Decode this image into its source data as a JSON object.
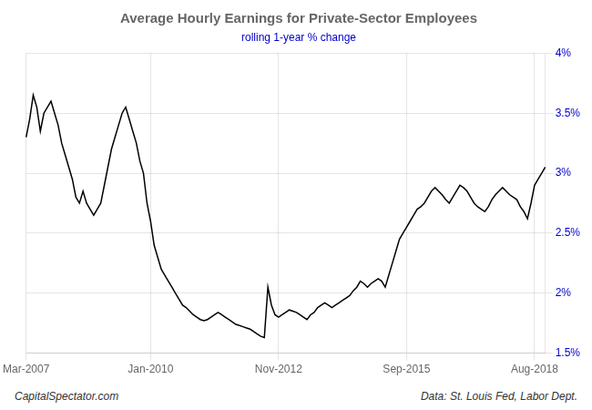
{
  "chart_data": {
    "type": "line",
    "title": "Average Hourly Earnings for Private-Sector Employees",
    "subtitle": "rolling 1-year % change",
    "annotations": [
      "CapitalSpectator.com",
      "Data: St. Louis Fed, Labor Dept."
    ],
    "categories": [
      "Mar-2007",
      null,
      null,
      null,
      null,
      null,
      null,
      null,
      null,
      null,
      null,
      null,
      null,
      null,
      null,
      null,
      null,
      null,
      null,
      null,
      null,
      null,
      null,
      null,
      null,
      null,
      null,
      null,
      null,
      null,
      null,
      null,
      null,
      null,
      null,
      "Jan-2010",
      null,
      null,
      null,
      null,
      null,
      null,
      null,
      null,
      null,
      null,
      null,
      null,
      null,
      null,
      null,
      null,
      null,
      null,
      null,
      null,
      null,
      null,
      null,
      null,
      null,
      null,
      null,
      null,
      null,
      null,
      null,
      null,
      null,
      null,
      null,
      "Nov-2012",
      null,
      null,
      null,
      null,
      null,
      null,
      null,
      null,
      null,
      null,
      null,
      null,
      null,
      null,
      null,
      null,
      null,
      null,
      null,
      null,
      null,
      null,
      null,
      null,
      null,
      null,
      null,
      null,
      null,
      null,
      null,
      null,
      null,
      null,
      null,
      "Sep-2015",
      null,
      null,
      null,
      null,
      null,
      null,
      null,
      null,
      null,
      null,
      null,
      null,
      null,
      null,
      null,
      null,
      null,
      null,
      null,
      null,
      null,
      null,
      null,
      null,
      null,
      null,
      null,
      null,
      null,
      null,
      null,
      null,
      null,
      null,
      null,
      "Aug-2018",
      null,
      null,
      null
    ],
    "series": [
      {
        "color": "#000000",
        "values": [
          3.3,
          3.45,
          3.65,
          3.55,
          3.35,
          3.5,
          3.55,
          3.6,
          3.5,
          3.4,
          3.25,
          3.15,
          3.05,
          2.95,
          2.8,
          2.75,
          2.85,
          2.75,
          2.7,
          2.65,
          2.7,
          2.75,
          2.9,
          3.05,
          3.2,
          3.3,
          3.4,
          3.5,
          3.55,
          3.45,
          3.35,
          3.25,
          3.1,
          3.0,
          2.75,
          2.6,
          2.4,
          2.3,
          2.2,
          2.15,
          2.1,
          2.05,
          2.0,
          1.95,
          1.9,
          1.88,
          1.85,
          1.82,
          1.8,
          1.78,
          1.77,
          1.78,
          1.8,
          1.82,
          1.84,
          1.82,
          1.8,
          1.78,
          1.76,
          1.74,
          1.73,
          1.72,
          1.71,
          1.7,
          1.68,
          1.66,
          1.64,
          1.63,
          2.05,
          1.9,
          1.82,
          1.8,
          1.82,
          1.84,
          1.86,
          1.85,
          1.84,
          1.82,
          1.8,
          1.78,
          1.82,
          1.84,
          1.88,
          1.9,
          1.92,
          1.9,
          1.88,
          1.9,
          1.92,
          1.94,
          1.96,
          1.98,
          2.02,
          2.05,
          2.1,
          2.08,
          2.05,
          2.08,
          2.1,
          2.12,
          2.1,
          2.05,
          2.15,
          2.25,
          2.35,
          2.45,
          2.5,
          2.55,
          2.6,
          2.65,
          2.7,
          2.72,
          2.75,
          2.8,
          2.85,
          2.88,
          2.85,
          2.82,
          2.78,
          2.75,
          2.8,
          2.85,
          2.9,
          2.88,
          2.85,
          2.8,
          2.75,
          2.72,
          2.7,
          2.68,
          2.72,
          2.78,
          2.82,
          2.85,
          2.88,
          2.85,
          2.82,
          2.8,
          2.78,
          2.72,
          2.68,
          2.62,
          2.75,
          2.9,
          2.95,
          3.0,
          3.05
        ]
      }
    ],
    "ylim": [
      1.5,
      4.0
    ],
    "yticks": [
      {
        "value": 1.5,
        "label": "1.5%"
      },
      {
        "value": 2.0,
        "label": "2%"
      },
      {
        "value": 2.5,
        "label": "2.5%"
      },
      {
        "value": 3.0,
        "label": "3%"
      },
      {
        "value": 3.5,
        "label": "3.5%"
      },
      {
        "value": 4.0,
        "label": "4%"
      }
    ],
    "grid": true
  }
}
